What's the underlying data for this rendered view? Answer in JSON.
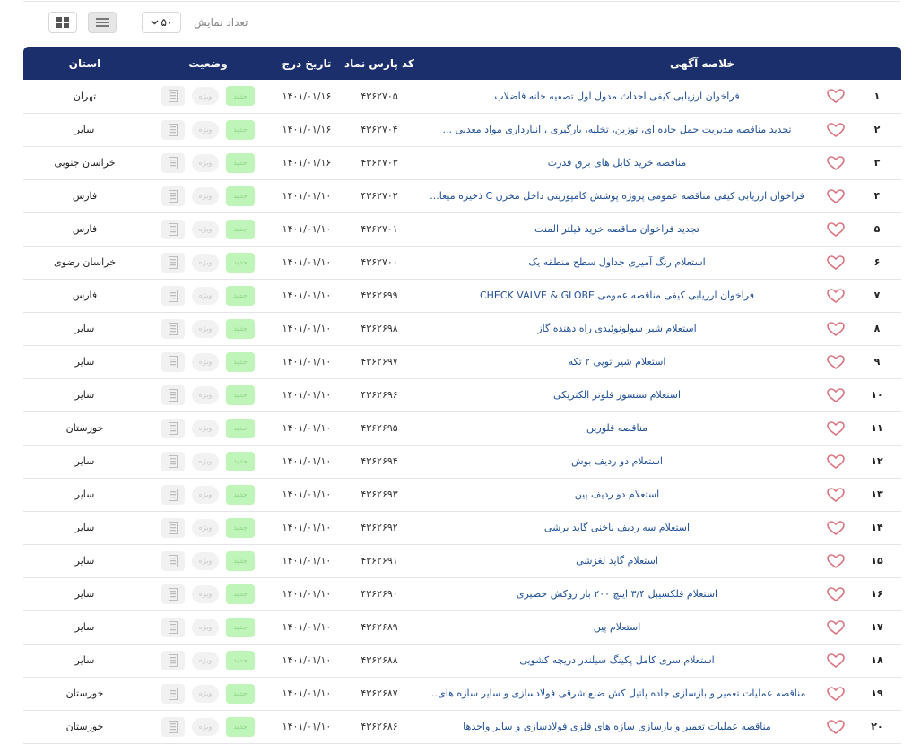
{
  "controls": {
    "count_label": "تعداد نمایش",
    "count_value": "۵۰"
  },
  "table": {
    "headers": {
      "summary": "خلاصه آگهی",
      "code": "کد پارس نماد",
      "date": "تاریخ درج",
      "status": "وضعیت",
      "province": "استان"
    },
    "badge_new": "جدید",
    "badge_special": "ویژه",
    "rows": [
      {
        "num": "۱",
        "summary": "فراخوان ارزیابی کیفی احداث مدول اول تصفیه خانه فاضلاب",
        "code": "۴۳۶۲۷۰۵",
        "date": "۱۴۰۱/۰۱/۱۶",
        "province": "تهران"
      },
      {
        "num": "۲",
        "summary": "تجدید مناقصه  مدیریت حمل جاده ای، توزین، تخلیه، بارگیری ، انبارداری مواد معدنی ...",
        "code": "۴۳۶۲۷۰۴",
        "date": "۱۴۰۱/۰۱/۱۶",
        "province": "سایر"
      },
      {
        "num": "۳",
        "summary": "مناقصه خرید کابل های برق قدرت",
        "code": "۴۳۶۲۷۰۳",
        "date": "۱۴۰۱/۰۱/۱۶",
        "province": "خراسان جنوبی"
      },
      {
        "num": "۴",
        "summary": "فراخوان ارزیابی کیفی مناقصه عمومی پروژه پوشش کامپوزیتی داخل مخزن C ذخیره میعا...",
        "code": "۴۳۶۲۷۰۲",
        "date": "۱۴۰۱/۰۱/۱۰",
        "province": "فارس"
      },
      {
        "num": "۵",
        "summary": "تجدید فراخوان مناقصه خرید فیلتر المنت",
        "code": "۴۳۶۲۷۰۱",
        "date": "۱۴۰۱/۰۱/۱۰",
        "province": "فارس"
      },
      {
        "num": "۶",
        "summary": "استعلام رنگ آمیزی جداول سطح منطقه یک",
        "code": "۴۳۶۲۷۰۰",
        "date": "۱۴۰۱/۰۱/۱۰",
        "province": "خراسان رضوی"
      },
      {
        "num": "۷",
        "summary": "فراخوان ارزیابی کیفی مناقصه عمومی CHECK VALVE & GLOBE",
        "code": "۴۳۶۲۶۹۹",
        "date": "۱۴۰۱/۰۱/۱۰",
        "province": "فارس"
      },
      {
        "num": "۸",
        "summary": "استعلام شیر سولونوئیدی راه دهنده گاز",
        "code": "۴۳۶۲۶۹۸",
        "date": "۱۴۰۱/۰۱/۱۰",
        "province": "سایر"
      },
      {
        "num": "۹",
        "summary": "استعلام شیر توپی ۲ تکه",
        "code": "۴۳۶۲۶۹۷",
        "date": "۱۴۰۱/۰۱/۱۰",
        "province": "سایر"
      },
      {
        "num": "۱۰",
        "summary": "استعلام سنسور فلوتر الکتریکی",
        "code": "۴۳۶۲۶۹۶",
        "date": "۱۴۰۱/۰۱/۱۰",
        "province": "سایر"
      },
      {
        "num": "۱۱",
        "summary": "مناقصه فلورین",
        "code": "۴۳۶۲۶۹۵",
        "date": "۱۴۰۱/۰۱/۱۰",
        "province": "خوزستان"
      },
      {
        "num": "۱۲",
        "summary": "استعلام دو ردیف بوش",
        "code": "۴۳۶۲۶۹۴",
        "date": "۱۴۰۱/۰۱/۱۰",
        "province": "سایر"
      },
      {
        "num": "۱۳",
        "summary": "استعلام دو ردیف پین",
        "code": "۴۳۶۲۶۹۳",
        "date": "۱۴۰۱/۰۱/۱۰",
        "province": "سایر"
      },
      {
        "num": "۱۴",
        "summary": "استعلام سه ردیف ناخنی گاید برشی",
        "code": "۴۳۶۲۶۹۲",
        "date": "۱۴۰۱/۰۱/۱۰",
        "province": "سایر"
      },
      {
        "num": "۱۵",
        "summary": "استعلام گاید لغزشی",
        "code": "۴۳۶۲۶۹۱",
        "date": "۱۴۰۱/۰۱/۱۰",
        "province": "سایر"
      },
      {
        "num": "۱۶",
        "summary": "استعلام فلکسیبل ۳/۴ اینچ ۲۰۰ بار روکش حصیری",
        "code": "۴۳۶۲۶۹۰",
        "date": "۱۴۰۱/۰۱/۱۰",
        "province": "سایر"
      },
      {
        "num": "۱۷",
        "summary": "استعلام پین",
        "code": "۴۳۶۲۶۸۹",
        "date": "۱۴۰۱/۰۱/۱۰",
        "province": "سایر"
      },
      {
        "num": "۱۸",
        "summary": "استعلام سری کامل پکینگ سیلندر دریچه کشویی",
        "code": "۴۳۶۲۶۸۸",
        "date": "۱۴۰۱/۰۱/۱۰",
        "province": "سایر"
      },
      {
        "num": "۱۹",
        "summary": "مناقصه عملیات تعمیر و بازسازی جاده پاتیل کش ضلع شرقی فولادسازی و سایر سازه های...",
        "code": "۴۳۶۲۶۸۷",
        "date": "۱۴۰۱/۰۱/۱۰",
        "province": "خوزستان"
      },
      {
        "num": "۲۰",
        "summary": "مناقصه عملیات تعمیر و بازسازی سازه های فلزی فولادسازی و سایر واحدها",
        "code": "۴۳۶۲۶۸۶",
        "date": "۱۴۰۱/۰۱/۱۰",
        "province": "خوزستان"
      }
    ]
  }
}
